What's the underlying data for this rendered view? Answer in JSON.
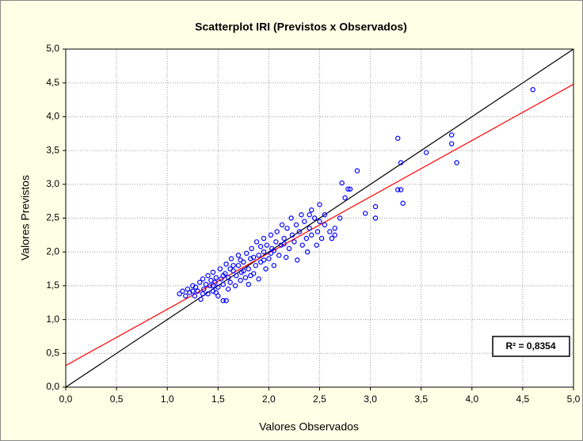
{
  "chart_data": {
    "type": "scatter",
    "title": "Scatterplot IRI (Previstos x Observados)",
    "x_label": "Valores Observados",
    "y_label": "Valores Previstos",
    "annotation": "R² = 0,8354",
    "color": "#0000ff",
    "grid": true,
    "xlim": [
      0,
      5
    ],
    "ylim": [
      0,
      5
    ],
    "xticks": [
      {
        "value": 0,
        "label": "0,0"
      },
      {
        "value": 0.5,
        "label": "0,5"
      },
      {
        "value": 1,
        "label": "1,0"
      },
      {
        "value": 1.5,
        "label": "1,5"
      },
      {
        "value": 2,
        "label": "2,0"
      },
      {
        "value": 2.5,
        "label": "2,5"
      },
      {
        "value": 3,
        "label": "3,0"
      },
      {
        "value": 3.5,
        "label": "3,5"
      },
      {
        "value": 4,
        "label": "4,0"
      },
      {
        "value": 4.5,
        "label": "4,5"
      },
      {
        "value": 5,
        "label": "5,0"
      }
    ],
    "yticks": [
      {
        "value": 0,
        "label": "0,0"
      },
      {
        "value": 0.5,
        "label": "0,5"
      },
      {
        "value": 1,
        "label": "1,0"
      },
      {
        "value": 1.5,
        "label": "1,5"
      },
      {
        "value": 2,
        "label": "2,0"
      },
      {
        "value": 2.5,
        "label": "2,5"
      },
      {
        "value": 3,
        "label": "3,0"
      },
      {
        "value": 3.5,
        "label": "3,5"
      },
      {
        "value": 4,
        "label": "4,0"
      },
      {
        "value": 4.5,
        "label": "4,5"
      },
      {
        "value": 5,
        "label": "5,0"
      }
    ],
    "lines": [
      {
        "color": "#000000",
        "x": [
          0,
          5
        ],
        "y": [
          0,
          5
        ]
      },
      {
        "color": "#ff0000",
        "x": [
          0,
          5
        ],
        "y": [
          0.32,
          4.48
        ]
      }
    ],
    "x": [
      1.12,
      1.15,
      1.18,
      1.2,
      1.22,
      1.25,
      1.27,
      1.28,
      1.3,
      1.32,
      1.33,
      1.35,
      1.36,
      1.38,
      1.4,
      1.4,
      1.42,
      1.43,
      1.45,
      1.45,
      1.47,
      1.48,
      1.5,
      1.5,
      1.52,
      1.53,
      1.55,
      1.55,
      1.57,
      1.58,
      1.6,
      1.6,
      1.62,
      1.63,
      1.65,
      1.67,
      1.68,
      1.7,
      1.7,
      1.72,
      1.73,
      1.75,
      1.77,
      1.78,
      1.8,
      1.8,
      1.82,
      1.83,
      1.85,
      1.87,
      1.88,
      1.9,
      1.9,
      1.92,
      1.95,
      1.95,
      1.97,
      1.98,
      2.0,
      2.02,
      2.03,
      2.05,
      2.07,
      2.08,
      2.1,
      2.12,
      2.13,
      2.15,
      2.17,
      2.18,
      2.2,
      2.22,
      2.23,
      2.25,
      2.27,
      2.28,
      2.3,
      2.32,
      2.33,
      2.35,
      2.37,
      2.38,
      2.4,
      2.42,
      2.45,
      2.48,
      2.52,
      2.55,
      2.6,
      2.65,
      1.25,
      1.35,
      1.45,
      1.55,
      1.65,
      1.75,
      1.85,
      1.95,
      2.05,
      2.15,
      1.58,
      1.48,
      1.62,
      1.72,
      1.82,
      1.92,
      2.02,
      4.6,
      3.8,
      3.8,
      3.85,
      3.55,
      3.3,
      3.27,
      3.27,
      3.3,
      3.32,
      3.05,
      3.05,
      2.95,
      2.87,
      2.8,
      2.78,
      2.72,
      2.75,
      2.7,
      2.65,
      2.62,
      2.55,
      2.5,
      2.5,
      2.47,
      2.42,
      2.4
    ],
    "y": [
      1.38,
      1.42,
      1.35,
      1.45,
      1.4,
      1.5,
      1.35,
      1.48,
      1.42,
      1.55,
      1.3,
      1.6,
      1.45,
      1.52,
      1.38,
      1.65,
      1.5,
      1.58,
      1.42,
      1.7,
      1.55,
      1.62,
      1.35,
      1.48,
      1.75,
      1.6,
      1.28,
      1.52,
      1.68,
      1.82,
      1.45,
      1.62,
      1.55,
      1.9,
      1.72,
      1.5,
      1.65,
      1.8,
      1.95,
      1.58,
      1.7,
      1.85,
      1.62,
      1.98,
      1.75,
      1.52,
      1.9,
      2.05,
      1.68,
      1.8,
      2.15,
      1.95,
      1.6,
      1.85,
      2.0,
      2.2,
      1.75,
      2.1,
      1.9,
      2.25,
      2.05,
      1.8,
      2.15,
      2.3,
      1.95,
      2.1,
      2.4,
      2.2,
      1.92,
      2.35,
      2.05,
      2.5,
      2.25,
      2.15,
      2.4,
      1.88,
      2.3,
      2.55,
      2.1,
      2.45,
      2.2,
      2.0,
      2.35,
      2.25,
      2.5,
      2.3,
      2.2,
      2.4,
      2.3,
      2.25,
      1.42,
      1.38,
      1.5,
      1.65,
      1.8,
      1.72,
      1.92,
      1.88,
      2.02,
      2.12,
      1.28,
      1.4,
      1.75,
      1.88,
      1.65,
      2.08,
      1.98,
      4.4,
      3.73,
      3.6,
      3.32,
      3.47,
      3.32,
      3.68,
      2.92,
      2.92,
      2.72,
      2.5,
      2.67,
      2.57,
      3.2,
      2.93,
      2.93,
      3.02,
      2.8,
      2.5,
      2.35,
      2.2,
      2.55,
      2.7,
      2.45,
      2.1,
      2.62,
      2.55
    ]
  }
}
